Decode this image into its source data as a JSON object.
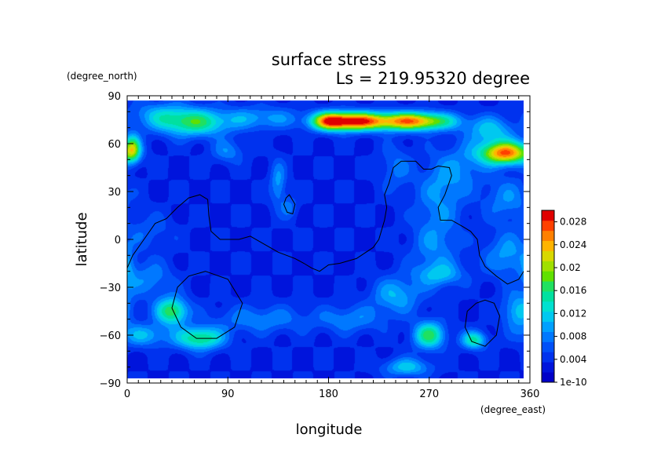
{
  "chart_data": {
    "type": "heatmap",
    "title": "surface stress",
    "subtitle": "Ls = 219.95320 degree",
    "xlabel": "longitude",
    "ylabel": "latitude",
    "x_units": "(degree_east)",
    "y_units": "(degree_north)",
    "xlim": [
      0,
      360
    ],
    "ylim": [
      -90,
      90
    ],
    "x_ticks": [
      0,
      90,
      180,
      270,
      360
    ],
    "y_ticks": [
      -90,
      -60,
      -30,
      0,
      30,
      60,
      90
    ],
    "x_tick_labels": [
      "0",
      "90",
      "180",
      "270",
      "360"
    ],
    "y_tick_labels": [
      "−90",
      "−60",
      "−30",
      "0",
      "30",
      "60",
      "90"
    ],
    "data_lat_range": [
      -87,
      87
    ],
    "colorbar": {
      "min": 0,
      "max": 0.03,
      "tick_values": [
        0,
        0.004,
        0.008,
        0.012,
        0.016,
        0.02,
        0.024,
        0.028
      ],
      "tick_labels": [
        "1e-10",
        "0.004",
        "0.008",
        "0.012",
        "0.016",
        "0.02",
        "0.024",
        "0.028"
      ],
      "colors": [
        "#0000c8",
        "#0014dc",
        "#0032ee",
        "#0050f8",
        "#0078ff",
        "#00a0ff",
        "#00c8f0",
        "#00e0d0",
        "#00e0a0",
        "#20e060",
        "#60e000",
        "#a0e000",
        "#d8d800",
        "#ffb400",
        "#ff8000",
        "#ff4000",
        "#e00000"
      ]
    },
    "background_value": 0.0035,
    "features": [
      {
        "lon": 200,
        "lat": 74,
        "slon": 20,
        "slat": 4,
        "amp": 0.024
      },
      {
        "lon": 255,
        "lat": 74,
        "slon": 25,
        "slat": 4,
        "amp": 0.022
      },
      {
        "lon": 180,
        "lat": 74,
        "slon": 10,
        "slat": 4,
        "amp": 0.012
      },
      {
        "lon": 338,
        "lat": 54,
        "slon": 16,
        "slat": 5,
        "amp": 0.023
      },
      {
        "lon": 325,
        "lat": 68,
        "slon": 15,
        "slat": 6,
        "amp": 0.008
      },
      {
        "lon": 60,
        "lat": 73,
        "slon": 22,
        "slat": 6,
        "amp": 0.012
      },
      {
        "lon": 120,
        "lat": 76,
        "slon": 25,
        "slat": 5,
        "amp": 0.006
      },
      {
        "lon": 5,
        "lat": 57,
        "slon": 5,
        "slat": 6,
        "amp": 0.014
      },
      {
        "lon": 30,
        "lat": 78,
        "slon": 20,
        "slat": 6,
        "amp": 0.006
      },
      {
        "lon": 90,
        "lat": 55,
        "slon": 10,
        "slat": 5,
        "amp": 0.005
      },
      {
        "lon": 135,
        "lat": 35,
        "slon": 5,
        "slat": 10,
        "amp": 0.006
      },
      {
        "lon": 145,
        "lat": 20,
        "slon": 5,
        "slat": 5,
        "amp": 0.004
      },
      {
        "lon": 280,
        "lat": 30,
        "slon": 15,
        "slat": 15,
        "amp": 0.005
      },
      {
        "lon": 300,
        "lat": 45,
        "slon": 15,
        "slat": 10,
        "amp": 0.004
      },
      {
        "lon": 240,
        "lat": 45,
        "slon": 10,
        "slat": 10,
        "amp": 0.004
      },
      {
        "lon": 275,
        "lat": -5,
        "slon": 15,
        "slat": 15,
        "amp": 0.005
      },
      {
        "lon": 280,
        "lat": -22,
        "slon": 15,
        "slat": 5,
        "amp": 0.006
      },
      {
        "lon": 340,
        "lat": -10,
        "slon": 15,
        "slat": 10,
        "amp": 0.006
      },
      {
        "lon": 40,
        "lat": -45,
        "slon": 10,
        "slat": 6,
        "amp": 0.014
      },
      {
        "lon": 65,
        "lat": -62,
        "slon": 15,
        "slat": 5,
        "amp": 0.013
      },
      {
        "lon": 20,
        "lat": -25,
        "slon": 15,
        "slat": 8,
        "amp": 0.005
      },
      {
        "lon": 15,
        "lat": -60,
        "slon": 15,
        "slat": 5,
        "amp": 0.007
      },
      {
        "lon": 270,
        "lat": -60,
        "slon": 10,
        "slat": 6,
        "amp": 0.013
      },
      {
        "lon": 310,
        "lat": -63,
        "slon": 8,
        "slat": 4,
        "amp": 0.011
      },
      {
        "lon": 240,
        "lat": -35,
        "slon": 15,
        "slat": 8,
        "amp": 0.007
      },
      {
        "lon": 250,
        "lat": -80,
        "slon": 15,
        "slat": 4,
        "amp": 0.008
      },
      {
        "lon": 200,
        "lat": -50,
        "slon": 20,
        "slat": 6,
        "amp": 0.005
      },
      {
        "lon": 120,
        "lat": -50,
        "slon": 30,
        "slat": 6,
        "amp": 0.005
      },
      {
        "lon": 350,
        "lat": -45,
        "slon": 10,
        "slat": 8,
        "amp": 0.008
      },
      {
        "lon": 340,
        "lat": 25,
        "slon": 15,
        "slat": 10,
        "amp": 0.005
      },
      {
        "lon": 20,
        "lat": 5,
        "slon": 15,
        "slat": 8,
        "amp": 0.003
      },
      {
        "lon": 0,
        "lat": -20,
        "slon": 5,
        "slat": 10,
        "amp": 0.004
      }
    ],
    "contours": [
      {
        "closed": false,
        "points": [
          [
            0,
            -18
          ],
          [
            5,
            -10
          ],
          [
            15,
            0
          ],
          [
            25,
            10
          ],
          [
            35,
            13
          ],
          [
            45,
            20
          ],
          [
            55,
            26
          ],
          [
            65,
            28
          ],
          [
            72,
            25
          ],
          [
            73,
            15
          ],
          [
            75,
            5
          ],
          [
            83,
            0
          ],
          [
            100,
            0
          ],
          [
            110,
            2
          ],
          [
            120,
            -2
          ],
          [
            135,
            -8
          ],
          [
            150,
            -12
          ],
          [
            158,
            -15
          ],
          [
            165,
            -18
          ],
          [
            172,
            -20
          ],
          [
            180,
            -16
          ],
          [
            190,
            -15
          ],
          [
            205,
            -12
          ],
          [
            220,
            -5
          ],
          [
            225,
            0
          ],
          [
            230,
            12
          ],
          [
            232,
            20
          ],
          [
            230,
            28
          ],
          [
            234,
            35
          ],
          [
            238,
            45
          ],
          [
            245,
            49
          ],
          [
            258,
            49
          ],
          [
            265,
            44
          ],
          [
            272,
            44
          ],
          [
            278,
            46
          ],
          [
            288,
            45
          ],
          [
            290,
            40
          ],
          [
            284,
            28
          ],
          [
            278,
            20
          ],
          [
            280,
            12
          ],
          [
            290,
            12
          ],
          [
            300,
            8
          ],
          [
            307,
            5
          ],
          [
            313,
            0
          ],
          [
            315,
            -10
          ],
          [
            320,
            -17
          ],
          [
            330,
            -23
          ],
          [
            340,
            -28
          ],
          [
            350,
            -25
          ],
          [
            360,
            -20
          ]
        ]
      },
      {
        "closed": true,
        "points": [
          [
            145,
            28
          ],
          [
            150,
            22
          ],
          [
            148,
            16
          ],
          [
            143,
            17
          ],
          [
            140,
            22
          ],
          [
            142,
            26
          ]
        ]
      },
      {
        "closed": true,
        "points": [
          [
            70,
            -20
          ],
          [
            90,
            -25
          ],
          [
            103,
            -40
          ],
          [
            96,
            -55
          ],
          [
            80,
            -62
          ],
          [
            62,
            -62
          ],
          [
            48,
            -55
          ],
          [
            40,
            -43
          ],
          [
            45,
            -30
          ],
          [
            55,
            -23
          ]
        ]
      },
      {
        "closed": true,
        "points": [
          [
            320,
            -38
          ],
          [
            328,
            -40
          ],
          [
            333,
            -48
          ],
          [
            330,
            -60
          ],
          [
            320,
            -67
          ],
          [
            308,
            -64
          ],
          [
            302,
            -55
          ],
          [
            304,
            -45
          ],
          [
            312,
            -40
          ]
        ]
      }
    ]
  }
}
